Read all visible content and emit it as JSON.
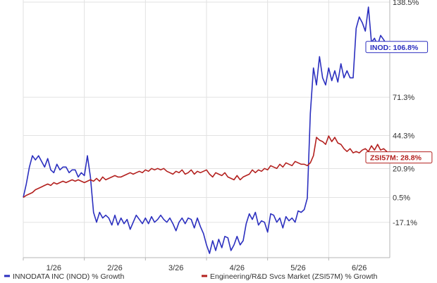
{
  "chart_data": {
    "type": "line",
    "x_tick_labels": [
      "1/26",
      "2/26",
      "3/26",
      "4/26",
      "5/26",
      "6/26"
    ],
    "y_tick_labels": [
      "138.5%",
      "71.3%",
      "44.3%",
      "20.9%",
      "0.5%",
      "-17.1%"
    ],
    "y_tick_values": [
      138.5,
      71.3,
      44.3,
      20.9,
      0.5,
      -17.1
    ],
    "ylim": [
      -42,
      140
    ],
    "grid": true,
    "legend_position": "bottom",
    "series": [
      {
        "name": "INNODATA INC (INOD) % Growth",
        "color": "#2b2fbf",
        "x": [
          0,
          2,
          4,
          6,
          8,
          10,
          12,
          14,
          16,
          18,
          20,
          22,
          24,
          26,
          28,
          30,
          32,
          34,
          36,
          38,
          40,
          42,
          44,
          46,
          48,
          50,
          52,
          54,
          56,
          58,
          60,
          62,
          64,
          66,
          68,
          70,
          72,
          74,
          76,
          78,
          80,
          82,
          84,
          86,
          88,
          90,
          92,
          94,
          96,
          98,
          100,
          102,
          104,
          106,
          108,
          110,
          112,
          114,
          116,
          118,
          120,
          122,
          124,
          126,
          128,
          130,
          132,
          134,
          136,
          138,
          140,
          142,
          144,
          146,
          148,
          150,
          152,
          154,
          156,
          158,
          160,
          162,
          164,
          166,
          168,
          170,
          172,
          174,
          176,
          178,
          180,
          182,
          184,
          186,
          188,
          190,
          192,
          194,
          196,
          198,
          200,
          202,
          204,
          206,
          208,
          210,
          212,
          214,
          216,
          218,
          220,
          222,
          224,
          226,
          228,
          230,
          232,
          234,
          236,
          238,
          240
        ],
        "values": [
          0.5,
          10,
          22,
          30,
          27,
          30,
          26,
          22,
          28,
          20,
          18,
          24,
          20,
          22,
          22,
          18,
          20,
          20,
          15,
          18,
          16,
          30,
          15,
          -10,
          -17,
          -10,
          -14,
          -12,
          -14,
          -19,
          -12,
          -19,
          -14,
          -18,
          -15,
          -22,
          -17,
          -12,
          -15,
          -18,
          -14,
          -18,
          -13,
          -17,
          -15,
          -12,
          -15,
          -17,
          -14,
          -18,
          -23,
          -17,
          -14,
          -18,
          -14,
          -15,
          -21,
          -14,
          -20,
          -25,
          -33,
          -39,
          -30,
          -37,
          -29,
          -35,
          -27,
          -28,
          -37,
          -33,
          -27,
          -33,
          -30,
          -18,
          -11,
          -15,
          -10,
          -19,
          -16,
          -17,
          -24,
          -11,
          -12,
          -17,
          -14,
          -21,
          -13,
          -16,
          -14,
          -17,
          -9,
          -10,
          -8,
          0,
          60,
          92,
          80,
          100,
          85,
          80,
          92,
          83,
          90,
          82,
          95,
          85,
          90,
          85,
          85,
          120,
          128,
          124,
          118,
          135,
          110,
          113,
          108,
          115,
          112,
          108,
          106.8
        ]
      },
      {
        "name": "Engineering/R&D Svcs Market (ZSI57M) % Growth",
        "color": "#b3201e",
        "x": [
          0,
          2,
          4,
          6,
          8,
          10,
          12,
          14,
          16,
          18,
          20,
          22,
          24,
          26,
          28,
          30,
          32,
          34,
          36,
          38,
          40,
          42,
          44,
          46,
          48,
          50,
          52,
          54,
          56,
          58,
          60,
          62,
          64,
          66,
          68,
          70,
          72,
          74,
          76,
          78,
          80,
          82,
          84,
          86,
          88,
          90,
          92,
          94,
          96,
          98,
          100,
          102,
          104,
          106,
          108,
          110,
          112,
          114,
          116,
          118,
          120,
          122,
          124,
          126,
          128,
          130,
          132,
          134,
          136,
          138,
          140,
          142,
          144,
          146,
          148,
          150,
          152,
          154,
          156,
          158,
          160,
          162,
          164,
          166,
          168,
          170,
          172,
          174,
          176,
          178,
          180,
          182,
          184,
          186,
          188,
          190,
          192,
          194,
          196,
          198,
          200,
          202,
          204,
          206,
          208,
          210,
          212,
          214,
          216,
          218,
          220,
          222,
          224,
          226,
          228,
          230,
          232,
          234,
          236,
          238,
          240
        ],
        "values": [
          0.5,
          2,
          3,
          4,
          6,
          7,
          8,
          9,
          10,
          9,
          11,
          10,
          11,
          12,
          11,
          12,
          13,
          12,
          13,
          12,
          11,
          12,
          13,
          12,
          14,
          12,
          15,
          13,
          14,
          15,
          16,
          15,
          15,
          16,
          17,
          18,
          17,
          18,
          19,
          18,
          20,
          19,
          21,
          20,
          21,
          20,
          21,
          19,
          18,
          17,
          19,
          18,
          20,
          17,
          18,
          20,
          17,
          19,
          18,
          19,
          20,
          17,
          15,
          18,
          17,
          16,
          18,
          15,
          14,
          13,
          16,
          13,
          15,
          16,
          17,
          20,
          18,
          20,
          19,
          21,
          20,
          23,
          22,
          21,
          24,
          22,
          25,
          24,
          23,
          26,
          25,
          24,
          24,
          23,
          25,
          30,
          43,
          41,
          40,
          38,
          44,
          40,
          43,
          39,
          38,
          35,
          33,
          35,
          32,
          33,
          32,
          34,
          35,
          33,
          37,
          34,
          38,
          34,
          35,
          33,
          28.8
        ]
      }
    ],
    "end_labels": [
      "INOD: 106.8%",
      "ZSI57M: 28.8%"
    ]
  }
}
